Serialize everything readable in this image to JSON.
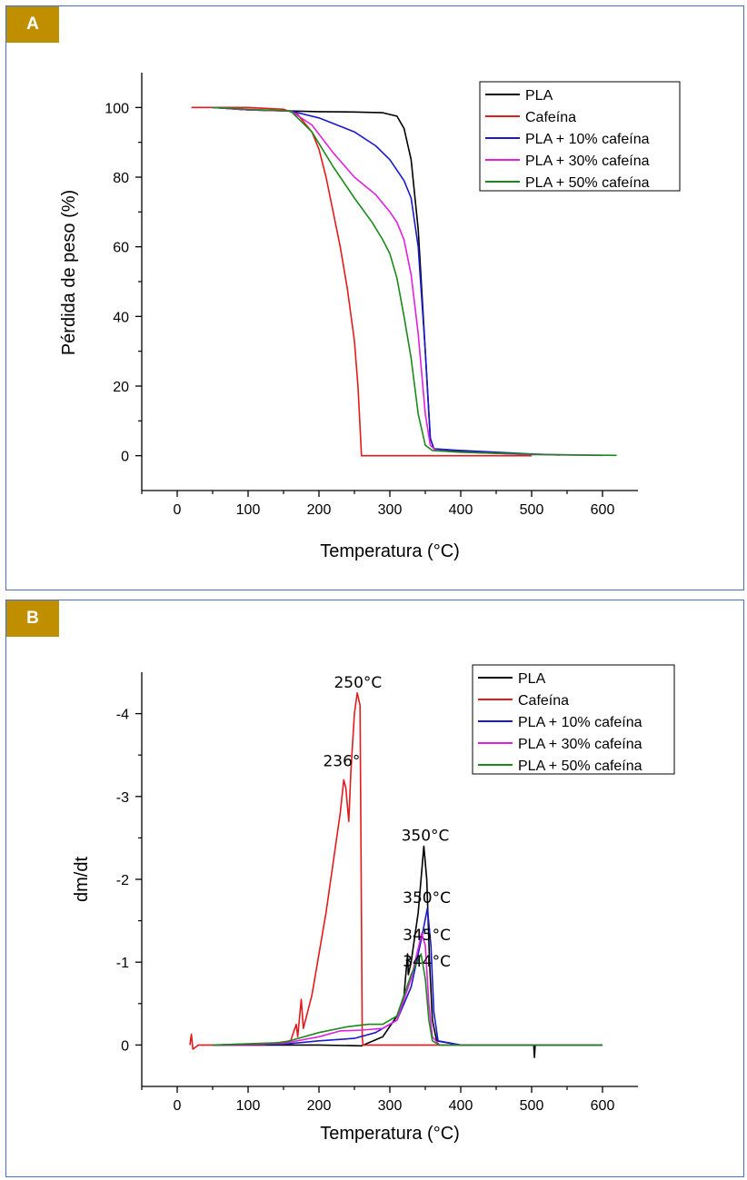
{
  "panels": {
    "a": {
      "label": "A"
    },
    "b": {
      "label": "B"
    }
  },
  "chart_data": [
    {
      "type": "line",
      "panel": "A",
      "xlabel": "Temperatura (°C)",
      "ylabel": "Pérdida de peso (%)",
      "xlim": [
        -50,
        650
      ],
      "ylim": [
        -10,
        110
      ],
      "xticks": [
        0,
        100,
        200,
        300,
        400,
        500,
        600
      ],
      "yticks": [
        0,
        20,
        40,
        60,
        80,
        100
      ],
      "legend_position": "top-right",
      "series": [
        {
          "name": "PLA",
          "color": "#000000",
          "points": [
            [
              50,
              100
            ],
            [
              100,
              99.3
            ],
            [
              160,
              99
            ],
            [
              200,
              98.8
            ],
            [
              250,
              98.7
            ],
            [
              290,
              98.5
            ],
            [
              310,
              97.5
            ],
            [
              320,
              94
            ],
            [
              330,
              85
            ],
            [
              340,
              65
            ],
            [
              350,
              30
            ],
            [
              357,
              5
            ],
            [
              362,
              2
            ],
            [
              400,
              1.3
            ],
            [
              450,
              0.7
            ],
            [
              500,
              0.3
            ]
          ]
        },
        {
          "name": "Cafeína",
          "color": "#e41a1c",
          "points": [
            [
              20,
              100
            ],
            [
              100,
              100
            ],
            [
              150,
              99.5
            ],
            [
              170,
              98
            ],
            [
              190,
              93
            ],
            [
              200,
              88
            ],
            [
              210,
              80
            ],
            [
              220,
              70
            ],
            [
              230,
              60
            ],
            [
              240,
              48
            ],
            [
              250,
              33
            ],
            [
              255,
              20
            ],
            [
              260,
              0
            ],
            [
              400,
              0
            ],
            [
              500,
              0
            ]
          ]
        },
        {
          "name": "PLA + 10% cafeína",
          "color": "#1a1acc",
          "points": [
            [
              50,
              100
            ],
            [
              100,
              99.3
            ],
            [
              160,
              99
            ],
            [
              200,
              97
            ],
            [
              250,
              93
            ],
            [
              280,
              89
            ],
            [
              300,
              85
            ],
            [
              320,
              79
            ],
            [
              330,
              74
            ],
            [
              340,
              60
            ],
            [
              350,
              30
            ],
            [
              357,
              5
            ],
            [
              362,
              2
            ],
            [
              400,
              1.5
            ],
            [
              450,
              1
            ],
            [
              500,
              0.5
            ],
            [
              540,
              0.2
            ]
          ]
        },
        {
          "name": "PLA + 30% cafeína",
          "color": "#e020e0",
          "points": [
            [
              50,
              100
            ],
            [
              100,
              99.3
            ],
            [
              160,
              99
            ],
            [
              190,
              95
            ],
            [
              220,
              87
            ],
            [
              250,
              80
            ],
            [
              280,
              75
            ],
            [
              300,
              70
            ],
            [
              310,
              67
            ],
            [
              320,
              62
            ],
            [
              330,
              52
            ],
            [
              340,
              35
            ],
            [
              350,
              12
            ],
            [
              357,
              3
            ],
            [
              365,
              1.5
            ],
            [
              400,
              1
            ],
            [
              500,
              0.3
            ],
            [
              600,
              0.1
            ]
          ]
        },
        {
          "name": "PLA + 50% cafeína",
          "color": "#1a8a1a",
          "points": [
            [
              50,
              100
            ],
            [
              100,
              99.5
            ],
            [
              160,
              99
            ],
            [
              190,
              93
            ],
            [
              220,
              83
            ],
            [
              250,
              74
            ],
            [
              275,
              67
            ],
            [
              290,
              62
            ],
            [
              300,
              58
            ],
            [
              310,
              51
            ],
            [
              320,
              40
            ],
            [
              330,
              28
            ],
            [
              340,
              12
            ],
            [
              350,
              3
            ],
            [
              360,
              1.5
            ],
            [
              400,
              1
            ],
            [
              500,
              0.4
            ],
            [
              620,
              0.1
            ]
          ]
        }
      ]
    },
    {
      "type": "line",
      "panel": "B",
      "xlabel": "Temperatura (°C)",
      "ylabel": "dm/dt",
      "xlim": [
        -50,
        650
      ],
      "ylim": [
        0.5,
        -4.5
      ],
      "xticks": [
        0,
        100,
        200,
        300,
        400,
        500,
        600
      ],
      "yticks": [
        0,
        -1,
        -2,
        -3,
        -4
      ],
      "legend_position": "top-right",
      "annotations": [
        {
          "text": "250°C",
          "x": 255,
          "y": -4.25
        },
        {
          "text": "236°",
          "x": 232,
          "y": -3.3
        },
        {
          "text": "350°C",
          "x": 350,
          "y": -2.4
        },
        {
          "text": "350°C",
          "x": 352,
          "y": -1.65
        },
        {
          "text": "345°C",
          "x": 352,
          "y": -1.2
        },
        {
          "text": "344°C",
          "x": 352,
          "y": -0.88
        }
      ],
      "series": [
        {
          "name": "PLA",
          "color": "#000000",
          "points": [
            [
              50,
              0
            ],
            [
              200,
              0
            ],
            [
              260,
              0.01
            ],
            [
              290,
              -0.1
            ],
            [
              310,
              -0.35
            ],
            [
              320,
              -0.6
            ],
            [
              325,
              -1.1
            ],
            [
              326,
              -0.85
            ],
            [
              330,
              -1.0
            ],
            [
              340,
              -1.6
            ],
            [
              348,
              -2.4
            ],
            [
              352,
              -2.0
            ],
            [
              356,
              -1.0
            ],
            [
              360,
              -0.3
            ],
            [
              366,
              -0.05
            ],
            [
              400,
              0
            ],
            [
              503,
              0
            ],
            [
              504,
              0.15
            ],
            [
              505,
              0
            ],
            [
              600,
              0
            ]
          ]
        },
        {
          "name": "Cafeína",
          "color": "#e41a1c",
          "points": [
            [
              18,
              0
            ],
            [
              20,
              -0.13
            ],
            [
              22,
              0.05
            ],
            [
              30,
              0
            ],
            [
              120,
              0
            ],
            [
              160,
              -0.05
            ],
            [
              168,
              -0.25
            ],
            [
              170,
              -0.1
            ],
            [
              175,
              -0.55
            ],
            [
              178,
              -0.2
            ],
            [
              190,
              -0.6
            ],
            [
              200,
              -1.1
            ],
            [
              210,
              -1.6
            ],
            [
              220,
              -2.2
            ],
            [
              230,
              -2.8
            ],
            [
              235,
              -3.2
            ],
            [
              238,
              -3.1
            ],
            [
              242,
              -2.7
            ],
            [
              245,
              -3.3
            ],
            [
              250,
              -4.0
            ],
            [
              254,
              -4.25
            ],
            [
              258,
              -4.1
            ],
            [
              261,
              -0.1
            ],
            [
              262,
              0
            ],
            [
              600,
              0
            ]
          ]
        },
        {
          "name": "PLA + 10% cafeína",
          "color": "#1a1acc",
          "points": [
            [
              50,
              0
            ],
            [
              150,
              -0.01
            ],
            [
              200,
              -0.05
            ],
            [
              250,
              -0.08
            ],
            [
              280,
              -0.15
            ],
            [
              310,
              -0.3
            ],
            [
              330,
              -0.7
            ],
            [
              345,
              -1.3
            ],
            [
              353,
              -1.65
            ],
            [
              358,
              -1.2
            ],
            [
              362,
              -0.4
            ],
            [
              368,
              -0.05
            ],
            [
              400,
              0
            ],
            [
              600,
              0
            ]
          ]
        },
        {
          "name": "PLA + 30% cafeína",
          "color": "#e020e0",
          "points": [
            [
              50,
              0
            ],
            [
              150,
              -0.02
            ],
            [
              200,
              -0.1
            ],
            [
              230,
              -0.17
            ],
            [
              260,
              -0.18
            ],
            [
              290,
              -0.2
            ],
            [
              310,
              -0.3
            ],
            [
              330,
              -0.8
            ],
            [
              345,
              -1.35
            ],
            [
              350,
              -1.2
            ],
            [
              355,
              -0.5
            ],
            [
              360,
              -0.1
            ],
            [
              370,
              0
            ],
            [
              600,
              0
            ]
          ]
        },
        {
          "name": "PLA + 50% cafeína",
          "color": "#1a8a1a",
          "points": [
            [
              50,
              0
            ],
            [
              150,
              -0.03
            ],
            [
              200,
              -0.15
            ],
            [
              240,
              -0.22
            ],
            [
              270,
              -0.25
            ],
            [
              290,
              -0.25
            ],
            [
              310,
              -0.35
            ],
            [
              330,
              -0.85
            ],
            [
              344,
              -1.1
            ],
            [
              350,
              -0.8
            ],
            [
              355,
              -0.3
            ],
            [
              360,
              -0.05
            ],
            [
              370,
              0
            ],
            [
              600,
              0
            ]
          ]
        }
      ]
    }
  ]
}
